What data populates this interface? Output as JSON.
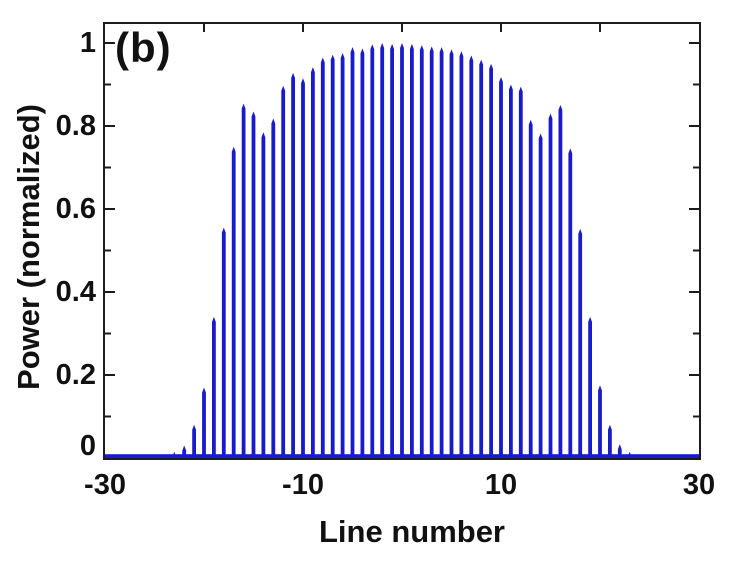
{
  "figure": {
    "annotation": "(b)",
    "background": "#ffffff"
  },
  "chart_data": {
    "type": "bar",
    "title": "",
    "xlabel": "Line number",
    "ylabel": "Power (normalized)",
    "xlim": [
      -30,
      30
    ],
    "ylim": [
      0,
      1.05
    ],
    "grid": false,
    "legend": null,
    "x_major_ticks": [
      -30,
      -10,
      10,
      30
    ],
    "x_tick_labels": [
      "-30",
      "-10",
      "10",
      "30"
    ],
    "x_minor_ticks": [
      -20,
      0,
      20
    ],
    "y_major_ticks": [
      0,
      0.2,
      0.4,
      0.6,
      0.8,
      1
    ],
    "y_tick_labels": [
      "0",
      "0.2",
      "0.4",
      "0.6",
      "0.8",
      "1"
    ],
    "y_minor_ticks": [
      0.1,
      0.3,
      0.5,
      0.7,
      0.9
    ],
    "colors": {
      "stem": "#1a1acd",
      "axis": "#1c1c1c",
      "text": "#111111"
    },
    "x": [
      -23,
      -22,
      -21,
      -20,
      -19,
      -18,
      -17,
      -16,
      -15,
      -14,
      -13,
      -12,
      -11,
      -10,
      -9,
      -8,
      -7,
      -6,
      -5,
      -4,
      -3,
      -2,
      -1,
      0,
      1,
      2,
      3,
      4,
      5,
      6,
      7,
      8,
      9,
      10,
      11,
      12,
      13,
      14,
      15,
      16,
      17,
      18,
      19,
      20,
      21,
      22,
      23
    ],
    "values": [
      0.015,
      0.03,
      0.08,
      0.17,
      0.34,
      0.555,
      0.75,
      0.854,
      0.835,
      0.785,
      0.818,
      0.897,
      0.928,
      0.915,
      0.942,
      0.965,
      0.972,
      0.976,
      0.99,
      0.987,
      0.997,
      1.0,
      0.998,
      1.0,
      0.998,
      0.995,
      0.992,
      0.99,
      0.985,
      0.98,
      0.97,
      0.96,
      0.95,
      0.918,
      0.9,
      0.895,
      0.815,
      0.782,
      0.83,
      0.851,
      0.746,
      0.552,
      0.34,
      0.175,
      0.08,
      0.033,
      0.015
    ]
  }
}
